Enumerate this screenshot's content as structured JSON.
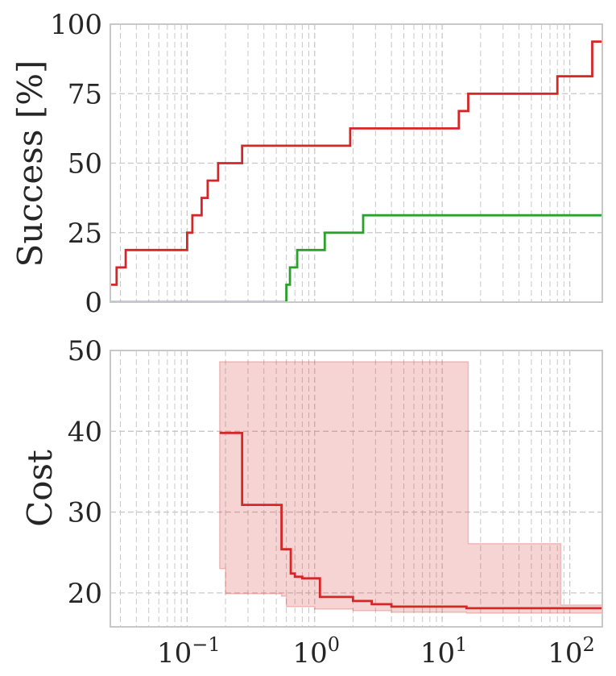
{
  "chart_data": [
    {
      "type": "line",
      "ylabel": "Success [%]",
      "xscale": "log",
      "xlim": [
        0.025,
        180
      ],
      "ylim": [
        0,
        100
      ],
      "yticks": [
        0,
        25,
        50,
        75,
        100
      ],
      "yticklabels": [
        "0",
        "25",
        "50",
        "75",
        "100"
      ],
      "grid": true,
      "series": [
        {
          "color": "#d62728",
          "step_x": [
            0.025,
            0.028,
            0.033,
            0.1,
            0.11,
            0.13,
            0.145,
            0.175,
            0.27,
            1.9,
            13.5,
            16,
            80,
            150,
            180
          ],
          "step_y": [
            6.25,
            12.5,
            18.75,
            25,
            31.25,
            37.5,
            43.75,
            50,
            56.25,
            62.5,
            68.75,
            75,
            81.25,
            93.75,
            93.75
          ]
        },
        {
          "color": "#2ca02c",
          "step_x": [
            0.025,
            0.6,
            0.64,
            0.73,
            0.95,
            1.2,
            2.4,
            180
          ],
          "step_y": [
            0,
            6.25,
            12.5,
            18.75,
            18.75,
            25,
            31.25,
            31.25
          ]
        }
      ]
    },
    {
      "type": "line",
      "ylabel": "Cost",
      "xscale": "log",
      "xlim": [
        0.025,
        180
      ],
      "ylim": [
        15.8,
        50
      ],
      "yticks": [
        20,
        30,
        40,
        50
      ],
      "yticklabels": [
        "20",
        "30",
        "40",
        "50"
      ],
      "xticks": [
        0.1,
        1,
        10,
        100
      ],
      "xticklabels": [
        "10^-1",
        "10^0",
        "10^1",
        "10^2"
      ],
      "grid": true,
      "series": [
        {
          "color": "#d62728",
          "step_x": [
            0.18,
            0.27,
            0.55,
            0.65,
            0.7,
            0.8,
            1.1,
            2.0,
            2.8,
            4.0,
            15.5,
            180
          ],
          "step_y": [
            39.8,
            30.9,
            25.4,
            22.4,
            22.0,
            21.8,
            19.5,
            19.0,
            18.6,
            18.3,
            18.1,
            18.0
          ]
        }
      ],
      "band": {
        "color": "#d62728",
        "x": [
          0.18,
          0.2,
          0.55,
          0.6,
          1.0,
          2.0,
          4.0,
          15.5,
          16,
          80,
          85,
          180
        ],
        "upper": [
          48.6,
          48.6,
          48.6,
          48.6,
          48.6,
          48.6,
          48.6,
          48.6,
          26.1,
          26.1,
          18.5,
          18.4
        ],
        "lower": [
          23.0,
          19.9,
          19.6,
          18.3,
          18.0,
          17.8,
          17.6,
          17.5,
          17.5,
          17.5,
          17.5,
          17.5
        ]
      }
    }
  ]
}
